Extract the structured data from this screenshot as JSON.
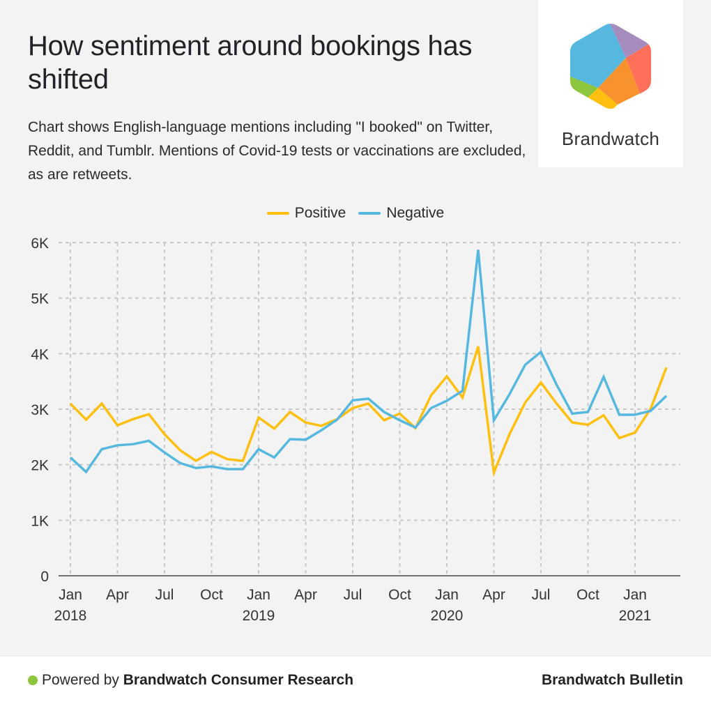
{
  "header": {
    "title": "How sentiment around bookings has shifted",
    "subtitle": "Chart shows English-language mentions including \"I booked\" on Twitter, Reddit, and Tumblr. Mentions of Covid-19 tests or vaccinations are excluded, as are retweets."
  },
  "logo": {
    "text": "Brandwatch",
    "icon": "brandwatch-hexagon-logo",
    "colors": [
      "#56b8de",
      "#a68bbf",
      "#ff6f59",
      "#f7922f",
      "#ffbf0f",
      "#8cc63f"
    ]
  },
  "footer": {
    "powered_prefix": "Powered by",
    "powered_brand": "Brandwatch Consumer Research",
    "publisher": "Brandwatch Bulletin",
    "dot_color": "#8cc63f"
  },
  "chart_data": {
    "type": "line",
    "title": "How sentiment around bookings has shifted",
    "xlabel": "",
    "ylabel": "",
    "ylim": [
      0,
      6000
    ],
    "yticks": [
      0,
      1000,
      2000,
      3000,
      4000,
      5000,
      6000
    ],
    "ytick_labels": [
      "0",
      "1K",
      "2K",
      "3K",
      "4K",
      "5K",
      "6K"
    ],
    "x": [
      "2018-01",
      "2018-02",
      "2018-03",
      "2018-04",
      "2018-05",
      "2018-06",
      "2018-07",
      "2018-08",
      "2018-09",
      "2018-10",
      "2018-11",
      "2018-12",
      "2019-01",
      "2019-02",
      "2019-03",
      "2019-04",
      "2019-05",
      "2019-06",
      "2019-07",
      "2019-08",
      "2019-09",
      "2019-10",
      "2019-11",
      "2019-12",
      "2020-01",
      "2020-02",
      "2020-03",
      "2020-04",
      "2020-05",
      "2020-06",
      "2020-07",
      "2020-08",
      "2020-09",
      "2020-10",
      "2020-11",
      "2020-12",
      "2021-01",
      "2021-02",
      "2021-03"
    ],
    "xticks": [
      {
        "index": 0,
        "month": "Jan",
        "year": "2018"
      },
      {
        "index": 3,
        "month": "Apr",
        "year": ""
      },
      {
        "index": 6,
        "month": "Jul",
        "year": ""
      },
      {
        "index": 9,
        "month": "Oct",
        "year": ""
      },
      {
        "index": 12,
        "month": "Jan",
        "year": "2019"
      },
      {
        "index": 15,
        "month": "Apr",
        "year": ""
      },
      {
        "index": 18,
        "month": "Jul",
        "year": ""
      },
      {
        "index": 21,
        "month": "Oct",
        "year": ""
      },
      {
        "index": 24,
        "month": "Jan",
        "year": "2020"
      },
      {
        "index": 27,
        "month": "Apr",
        "year": ""
      },
      {
        "index": 30,
        "month": "Jul",
        "year": ""
      },
      {
        "index": 33,
        "month": "Oct",
        "year": ""
      },
      {
        "index": 36,
        "month": "Jan",
        "year": "2021"
      }
    ],
    "grid": true,
    "legend_position": "top-center",
    "series": [
      {
        "name": "Positive",
        "color": "#ffbf0f",
        "values": [
          3100,
          2810,
          3100,
          2710,
          2820,
          2910,
          2550,
          2260,
          2070,
          2230,
          2100,
          2070,
          2850,
          2650,
          2950,
          2760,
          2700,
          2820,
          3020,
          3100,
          2800,
          2920,
          2660,
          3250,
          3590,
          3210,
          4130,
          1860,
          2550,
          3120,
          3480,
          3100,
          2760,
          2720,
          2890,
          2480,
          2580,
          3010,
          3750
        ]
      },
      {
        "name": "Negative",
        "color": "#56b8de",
        "values": [
          2130,
          1870,
          2280,
          2350,
          2370,
          2430,
          2220,
          2030,
          1940,
          1970,
          1920,
          1920,
          2280,
          2130,
          2460,
          2450,
          2620,
          2810,
          3160,
          3190,
          2950,
          2800,
          2670,
          3020,
          3150,
          3330,
          5870,
          2800,
          3270,
          3800,
          4030,
          3440,
          2920,
          2950,
          3580,
          2900,
          2900,
          2970,
          3240
        ]
      }
    ]
  }
}
